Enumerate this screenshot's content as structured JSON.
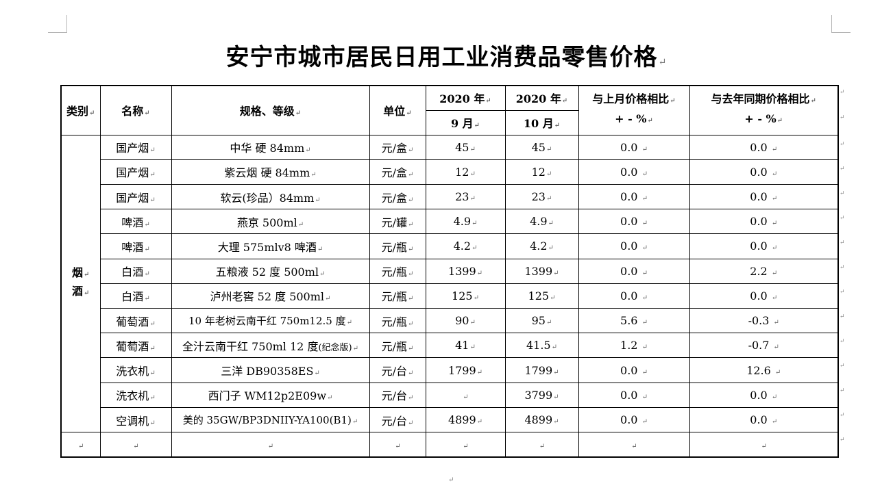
{
  "title": "安宁市城市居民日用工业消费品零售价格",
  "marker": "↵",
  "headers": {
    "category": "类别",
    "name": "名称",
    "spec": "规格、等级",
    "unit": "单位",
    "year_a": "2020 年",
    "month_a": "9 月",
    "year_b": "2020 年",
    "month_b": "10 月",
    "mom_line1": "与上月价格相比",
    "mom_line2": "+ - %",
    "yoy_line1": "与去年同期价格相比",
    "yoy_line2": "+ - %"
  },
  "category_label": {
    "line1": "烟",
    "line2": "酒"
  },
  "rows": [
    {
      "name": "国产烟",
      "spec": "中华  硬 84mm",
      "unit": "元/盒",
      "sep": "45",
      "oct": "45",
      "mom": "0.0",
      "yoy": "0.0"
    },
    {
      "name": "国产烟",
      "spec": "紫云烟  硬 84mm",
      "unit": "元/盒",
      "sep": "12",
      "oct": "12",
      "mom": "0.0",
      "yoy": "0.0"
    },
    {
      "name": "国产烟",
      "spec": "软云(珍品）84mm",
      "unit": "元/盒",
      "sep": "23",
      "oct": "23",
      "mom": "0.0",
      "yoy": "0.0"
    },
    {
      "name": "啤酒",
      "spec": "燕京 500ml",
      "unit": "元/罐",
      "sep": "4.9",
      "oct": "4.9",
      "mom": "0.0",
      "yoy": "0.0"
    },
    {
      "name": "啤酒",
      "spec": "大理 575mlv8 啤酒",
      "unit": "元/瓶",
      "sep": "4.2",
      "oct": "4.2",
      "mom": "0.0",
      "yoy": "0.0"
    },
    {
      "name": "白酒",
      "spec": "五粮液 52 度 500ml",
      "unit": "元/瓶",
      "sep": "1399",
      "oct": "1399",
      "mom": "0.0",
      "yoy": "2.2"
    },
    {
      "name": "白酒",
      "spec": "泸州老窖 52 度 500ml",
      "unit": "元/瓶",
      "sep": "125",
      "oct": "125",
      "mom": "0.0",
      "yoy": "0.0"
    },
    {
      "name": "葡萄酒",
      "spec": "10 年老树云南干红  750m12.5 度",
      "unit": "元/瓶",
      "sep": "90",
      "oct": "95",
      "mom": "5.6",
      "yoy": "-0.3"
    },
    {
      "name": "葡萄酒",
      "spec": "全汁云南干红 750ml 12 度",
      "spec_note": "(纪念版)",
      "unit": "元/瓶",
      "sep": "41",
      "oct": "41.5",
      "mom": "1.2",
      "yoy": "-0.7"
    },
    {
      "name": "洗衣机",
      "spec": "三洋 DB90358ES",
      "unit": "元/台",
      "sep": "1799",
      "oct": "1799",
      "mom": "0.0",
      "yoy": "12.6"
    },
    {
      "name": "洗衣机",
      "spec": "西门子 WM12p2E09w",
      "unit": "元/台",
      "sep": "",
      "oct": "3799",
      "mom": "0.0",
      "yoy": "0.0"
    },
    {
      "name": "空调机",
      "spec": "美的 35GW/BP3DNIIY-YA100(B1)",
      "unit": "元/台",
      "sep": "4899",
      "oct": "4899",
      "mom": "0.0",
      "yoy": "0.0"
    }
  ]
}
